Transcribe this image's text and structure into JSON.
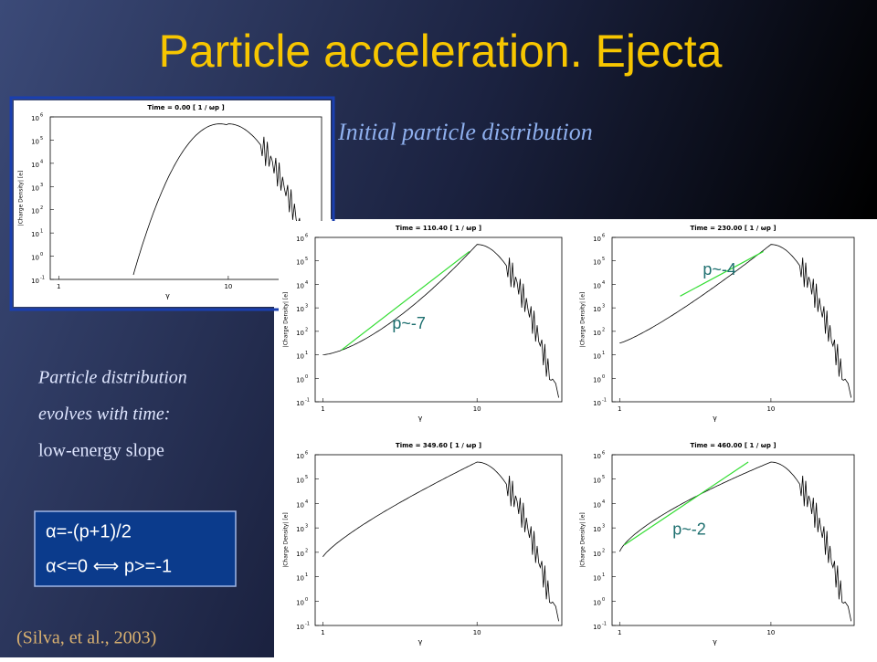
{
  "title": "Particle acceleration. Ejecta",
  "subtitle": "Initial particle distribution",
  "description": [
    "Particle distribution",
    "evolves with time:",
    "low-energy slope"
  ],
  "formula": [
    "α=-(p+1)/2",
    "α<=0 ⟺ p>=-1"
  ],
  "citation": "(Silva, et al., 2003)",
  "plot_axes": {
    "y_label": "|Charge Density| [e]",
    "x_label": "γ",
    "y_tick_base": "10",
    "y_tick_exponents": [
      "-1",
      "0",
      "1",
      "2",
      "3",
      "4",
      "5",
      "6"
    ],
    "x_ticks": [
      "1",
      "10"
    ]
  },
  "plots": [
    {
      "time": "Time = 0.00 [ 1 / ωp ]"
    },
    {
      "time": "Time = 110.40 [ 1 / ωp ]",
      "slope": "p~-7"
    },
    {
      "time": "Time = 230.00 [ 1 / ωp ]",
      "slope": "p~-4"
    },
    {
      "time": "Time = 349.60 [ 1 / ωp ]"
    },
    {
      "time": "Time = 460.00 [ 1 / ωp ]",
      "slope": "p~-2"
    }
  ]
}
